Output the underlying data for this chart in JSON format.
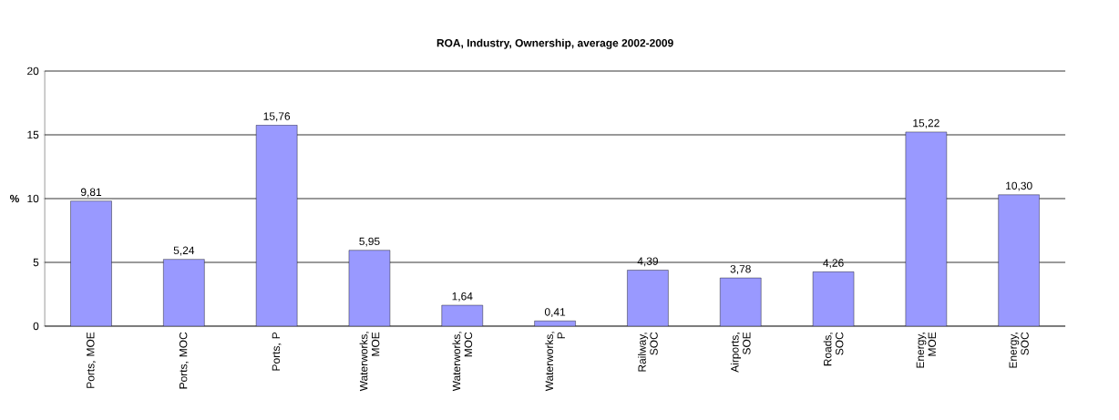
{
  "chart_data": {
    "type": "bar",
    "title": "ROA, Industry, Ownership, average 2002-2009",
    "ylabel": "%",
    "categories": [
      "Ports, MOE",
      "Ports, MOC",
      "Ports, P",
      "Waterworks, MOE",
      "Waterworks, MOC",
      "Waterworks, P",
      "Railway, SOC",
      "Airports, SOE",
      "Roads, SOC",
      "Energy, MOE",
      "Energy, SOC"
    ],
    "values": [
      9.81,
      5.24,
      15.76,
      5.95,
      1.64,
      0.41,
      4.39,
      3.78,
      4.26,
      15.22,
      10.3
    ],
    "value_labels": [
      "9,81",
      "5,24",
      "15,76",
      "5,95",
      "1,64",
      "0,41",
      "4,39",
      "3,78",
      "4,26",
      "15,22",
      "10,30"
    ],
    "color": "#9999ff",
    "ylim": [
      0,
      20
    ],
    "yticks": [
      0,
      5,
      10,
      15,
      20
    ],
    "grid": "y"
  }
}
